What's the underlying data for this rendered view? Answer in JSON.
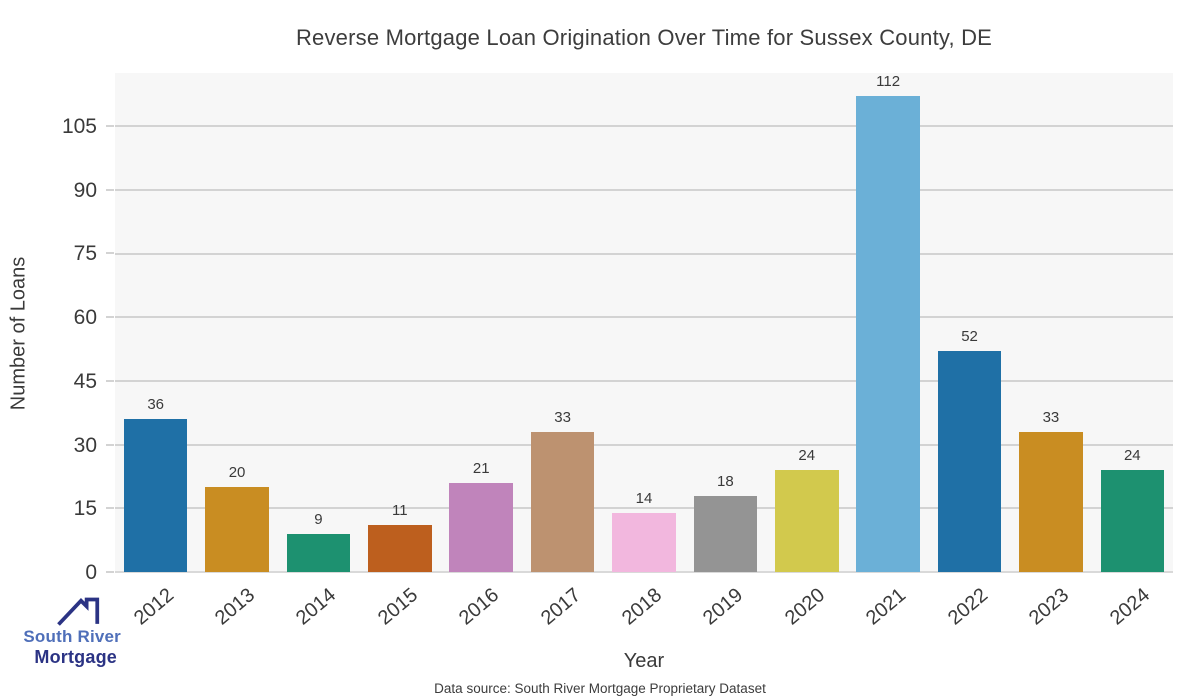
{
  "title": "Reverse Mortgage Loan Origination Over Time for Sussex County, DE",
  "chart_data": {
    "type": "bar",
    "title": "Reverse Mortgage Loan Origination Over Time for Sussex County, DE",
    "xlabel": "Year",
    "ylabel": "Number of Loans",
    "categories": [
      "2012",
      "2013",
      "2014",
      "2015",
      "2016",
      "2017",
      "2018",
      "2019",
      "2020",
      "2021",
      "2022",
      "2023",
      "2024"
    ],
    "values": [
      36,
      20,
      9,
      11,
      21,
      33,
      14,
      18,
      24,
      112,
      52,
      33,
      24
    ],
    "bar_colors": [
      "#1f70a6",
      "#c98d22",
      "#1d9170",
      "#bd5f1e",
      "#c084bb",
      "#bd9270",
      "#f2b7de",
      "#949494",
      "#d2c94d",
      "#6bb0d7",
      "#1f70a6",
      "#c98d22",
      "#1d9170"
    ],
    "yticks": [
      0,
      15,
      30,
      45,
      60,
      75,
      90,
      105
    ],
    "ylim": [
      0,
      117.5
    ],
    "grid": true,
    "legend_position": "none",
    "value_labels_shown": true
  },
  "footer": {
    "source": "Data source: South River Mortgage Proprietary Dataset"
  },
  "logo": {
    "line1": "South River",
    "line2": "Mortgage",
    "accent_color": "#4f6fb9",
    "dark_color": "#2b3384"
  },
  "colors": {
    "plot_bg": "#f7f7f7",
    "grid": "#d3d3d3",
    "axis_line": "#d9d9d9",
    "text": "#3a3a3a"
  }
}
